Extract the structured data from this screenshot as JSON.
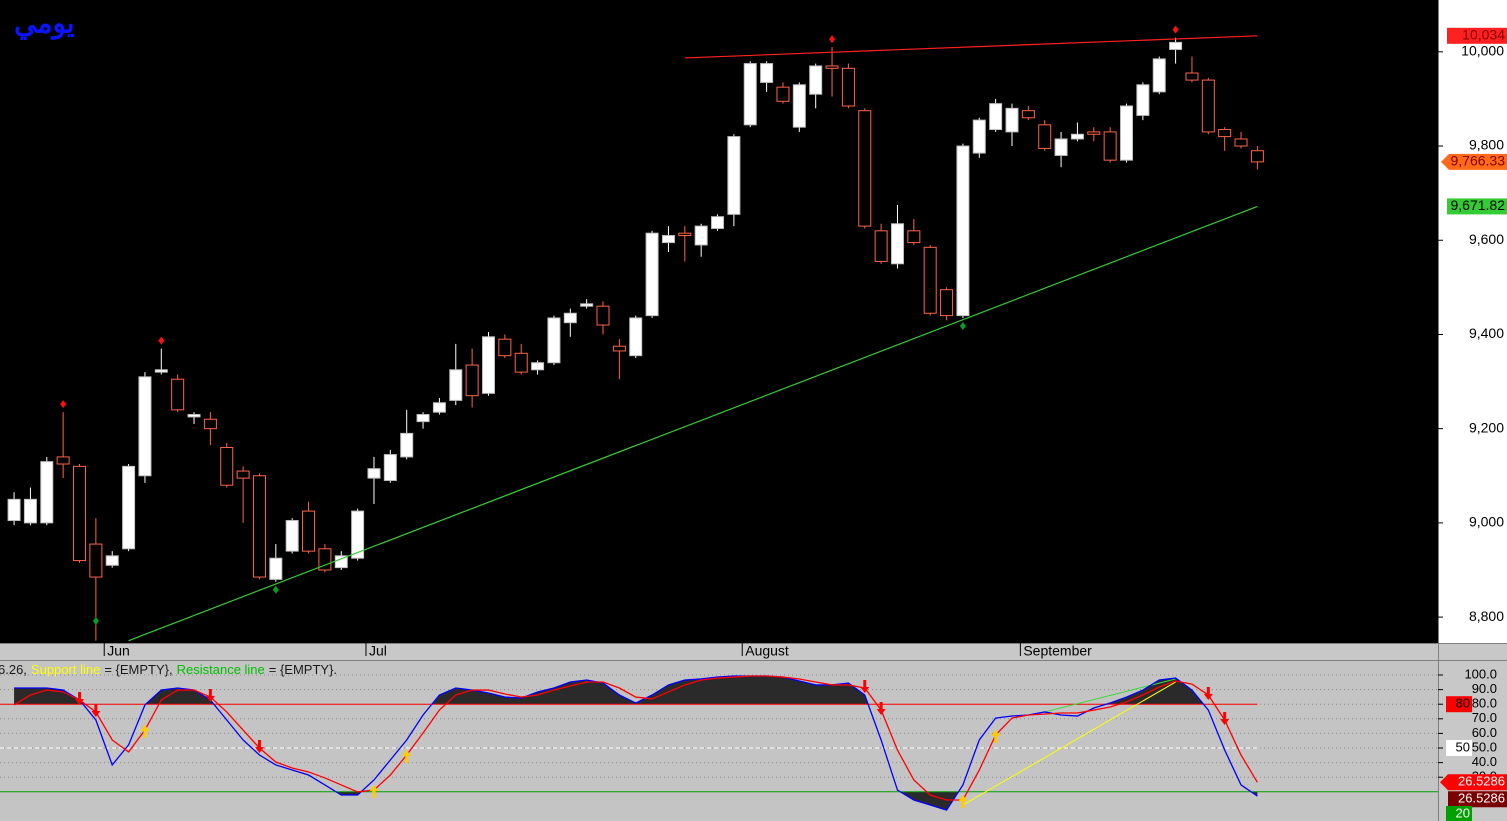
{
  "chart_data": [
    {
      "type": "candlestick",
      "title": "يومي",
      "title_color": "#0a14ff",
      "xlim": [
        -0.86,
        87.04
      ],
      "xticks": [
        {
          "value": 6,
          "label": "Jun"
        },
        {
          "value": 22,
          "label": "Jul"
        },
        {
          "value": 45,
          "label": "August"
        },
        {
          "value": 62,
          "label": "September"
        }
      ],
      "ylim": [
        8745,
        10110
      ],
      "yticks": [
        {
          "value": 8800,
          "label": "8,800"
        },
        {
          "value": 9000,
          "label": "9,000"
        },
        {
          "value": 9200,
          "label": "9,200"
        },
        {
          "value": 9400,
          "label": "9,400"
        },
        {
          "value": 9600,
          "label": "9,600"
        },
        {
          "value": 9800,
          "label": "9,800"
        },
        {
          "value": 10000,
          "label": "10,000"
        }
      ],
      "open": [
        9005,
        9000,
        9000,
        9140,
        9120,
        8955,
        8910,
        8945,
        9100,
        9320,
        9305,
        9225,
        9220,
        9160,
        9110,
        9100,
        8880,
        8940,
        9025,
        8945,
        8905,
        8925,
        9095,
        9090,
        9140,
        9215,
        9235,
        9260,
        9335,
        9275,
        9390,
        9360,
        9325,
        9340,
        9425,
        9460,
        9460,
        9375,
        9355,
        9440,
        9595,
        9615,
        9590,
        9625,
        9655,
        9845,
        9935,
        9925,
        9840,
        9910,
        9970,
        9965,
        9875,
        9620,
        9550,
        9620,
        9585,
        9495,
        9440,
        9785,
        9835,
        9830,
        9875,
        9845,
        9780,
        9815,
        9830,
        9830,
        9770,
        9865,
        9915,
        10005,
        9955,
        9940,
        9835,
        9815,
        9790
      ],
      "high": [
        9065,
        9075,
        9140,
        9235,
        9125,
        9010,
        8940,
        9125,
        9320,
        9370,
        9315,
        9235,
        9235,
        9170,
        9120,
        9105,
        8955,
        9010,
        9045,
        8955,
        8940,
        9030,
        9140,
        9155,
        9240,
        9235,
        9265,
        9380,
        9370,
        9405,
        9400,
        9380,
        9345,
        9440,
        9455,
        9475,
        9470,
        9390,
        9440,
        9620,
        9630,
        9630,
        9635,
        9655,
        9825,
        9980,
        9980,
        9935,
        9935,
        9975,
        10010,
        9975,
        9880,
        9635,
        9675,
        9645,
        9590,
        9500,
        9805,
        9860,
        9900,
        9890,
        9885,
        9855,
        9830,
        9850,
        9840,
        9840,
        9890,
        9935,
        9990,
        10030,
        9990,
        9945,
        9840,
        9830,
        9800
      ],
      "low": [
        8995,
        8995,
        8995,
        9095,
        8915,
        8750,
        8905,
        8940,
        9085,
        9315,
        9235,
        9210,
        9165,
        9075,
        9000,
        8880,
        8875,
        8935,
        8935,
        8895,
        8900,
        8920,
        9040,
        9085,
        9135,
        9200,
        9230,
        9250,
        9245,
        9270,
        9350,
        9315,
        9315,
        9335,
        9395,
        9455,
        9400,
        9305,
        9350,
        9435,
        9575,
        9555,
        9565,
        9620,
        9630,
        9840,
        9915,
        9890,
        9830,
        9880,
        9905,
        9880,
        9625,
        9550,
        9540,
        9590,
        9440,
        9430,
        9435,
        9775,
        9830,
        9800,
        9855,
        9790,
        9755,
        9810,
        9810,
        9765,
        9765,
        9855,
        9910,
        9975,
        9935,
        9825,
        9790,
        9795,
        9750
      ],
      "close": [
        9050,
        9050,
        9130,
        9125,
        8920,
        8885,
        8930,
        9120,
        9310,
        9325,
        9240,
        9230,
        9200,
        9080,
        9095,
        8885,
        8925,
        9005,
        8940,
        8900,
        8930,
        9025,
        9115,
        9145,
        9190,
        9230,
        9255,
        9325,
        9270,
        9395,
        9355,
        9320,
        9340,
        9435,
        9445,
        9465,
        9420,
        9365,
        9435,
        9615,
        9610,
        9610,
        9630,
        9650,
        9820,
        9975,
        9975,
        9895,
        9930,
        9970,
        9965,
        9885,
        9630,
        9555,
        9635,
        9595,
        9445,
        9440,
        9800,
        9855,
        9890,
        9880,
        9860,
        9795,
        9815,
        9825,
        9825,
        9770,
        9885,
        9930,
        9985,
        10020,
        9940,
        9830,
        9820,
        9800,
        9766.33
      ],
      "close_label": "9,766.33",
      "close_label_color": "#ff6a1a",
      "up_color": "#ffffff",
      "down_color": "#ff6347",
      "peak_markers": [
        3,
        9,
        50,
        71
      ],
      "peak_color": "#ff1010",
      "trough_markers": [
        5,
        16,
        58
      ],
      "trough_color": "#00a020",
      "trendlines": [
        {
          "color": "#ff2020",
          "x": [
            41,
            76
          ],
          "values": [
            9987,
            10034
          ],
          "end_label": "10,034"
        },
        {
          "color": "#33cc33",
          "x": [
            7,
            76
          ],
          "values": [
            8750,
            9671.82
          ],
          "end_label": "9,671.82"
        }
      ]
    },
    {
      "type": "oscillator",
      "legend_text": [
        {
          "text": "6.26,",
          "color": "#1a1a1a"
        },
        {
          "text": "Support line",
          "color": "#ffff00"
        },
        {
          "text": "= {EMPTY},",
          "color": "#1a1a1a"
        },
        {
          "text": "Resistance line",
          "color": "#00c000"
        },
        {
          "text": "= {EMPTY}.",
          "color": "#1a1a1a"
        }
      ],
      "xlim": [
        -0.86,
        87.04
      ],
      "ylim": [
        0,
        109.6
      ],
      "yticks": [
        {
          "value": 30,
          "label": "30.0"
        },
        {
          "value": 40,
          "label": "40.0"
        },
        {
          "value": 50,
          "label": "50.0"
        },
        {
          "value": 60,
          "label": "60.0"
        },
        {
          "value": 70,
          "label": "70.0"
        },
        {
          "value": 80,
          "label": "80.0"
        },
        {
          "value": 90,
          "label": "90.0"
        },
        {
          "value": 100,
          "label": "100.0"
        }
      ],
      "grid": true,
      "series": [
        {
          "color": "#0000ff",
          "values": [
            91.1,
            91.1,
            91.1,
            89.7,
            82.9,
            69.2,
            38.4,
            52.1,
            79.5,
            89.7,
            91.1,
            89.7,
            82.9,
            69.2,
            55.5,
            45.2,
            38.4,
            34.9,
            31.5,
            24.7,
            17.8,
            17.8,
            28.1,
            41.8,
            55.5,
            72.6,
            86.3,
            91.1,
            89.7,
            87.7,
            84.9,
            84.2,
            88.4,
            91.1,
            95.2,
            96.6,
            94.5,
            86.3,
            80.8,
            86.3,
            93.2,
            96.6,
            97.3,
            98.6,
            99.3,
            99.3,
            99.3,
            98.6,
            95.9,
            93.2,
            93.2,
            94.5,
            86.3,
            55.5,
            21.2,
            14.4,
            11.0,
            7.5,
            24.7,
            55.5,
            70.5,
            71.9,
            72.6,
            74.7,
            72.6,
            71.9,
            77.4,
            80.8,
            84.9,
            89.7,
            96.6,
            97.9,
            89.7,
            76.0,
            48.6,
            24.7,
            17.1
          ]
        },
        {
          "color": "#ff0000",
          "values": [
            79.5,
            86.3,
            89.7,
            88.4,
            82.9,
            74.7,
            55.5,
            47.3,
            62.3,
            82.9,
            89.7,
            89.7,
            84.9,
            74.7,
            62.3,
            50.0,
            40.4,
            36.3,
            33.6,
            29.5,
            24.7,
            19.9,
            21.2,
            31.5,
            45.2,
            60.3,
            76.0,
            86.3,
            89.7,
            89.7,
            87.0,
            84.9,
            86.3,
            89.7,
            92.5,
            95.2,
            95.2,
            91.1,
            84.9,
            83.6,
            88.4,
            93.2,
            96.6,
            97.9,
            98.6,
            99.3,
            99.3,
            98.6,
            97.3,
            95.2,
            93.2,
            93.2,
            91.1,
            76.0,
            48.6,
            28.1,
            17.8,
            14.4,
            14.4,
            34.9,
            58.9,
            70.5,
            72.6,
            73.3,
            74.0,
            74.0,
            76.0,
            78.1,
            81.5,
            86.3,
            91.8,
            95.9,
            93.8,
            86.3,
            69.2,
            45.2,
            26.5286
          ],
          "end_labels": [
            {
              "label": "26.5286",
              "color": "#ff0000"
            },
            {
              "label": "26.5286",
              "color": "#7a0000"
            }
          ]
        }
      ],
      "fill_color": "#2a2a2a",
      "levels": [
        {
          "value": 80,
          "label": "80",
          "color": "#ff0000",
          "text_color": "#000000",
          "dash": false
        },
        {
          "value": 50,
          "label": "50",
          "color": "#ffffff",
          "text_color": "#000000",
          "dash": true
        },
        {
          "value": 20,
          "label": "20",
          "color": "#00a000",
          "text_color": "#ffffff",
          "dash": false
        }
      ],
      "sell_signals": [
        4,
        5,
        12,
        15,
        52,
        53,
        73,
        74
      ],
      "sell_color": "#ff0000",
      "buy_signals": [
        8,
        22,
        24,
        58,
        60
      ],
      "buy_color": "#ffcc00",
      "support_line": {
        "color": "#ffff00",
        "x": [
          58,
          71
        ],
        "values": [
          11.0,
          95.2
        ]
      },
      "resistance_line": {
        "color": "#33dd33",
        "x": [
          63,
          71
        ],
        "values": [
          74.7,
          97.3
        ]
      }
    }
  ]
}
